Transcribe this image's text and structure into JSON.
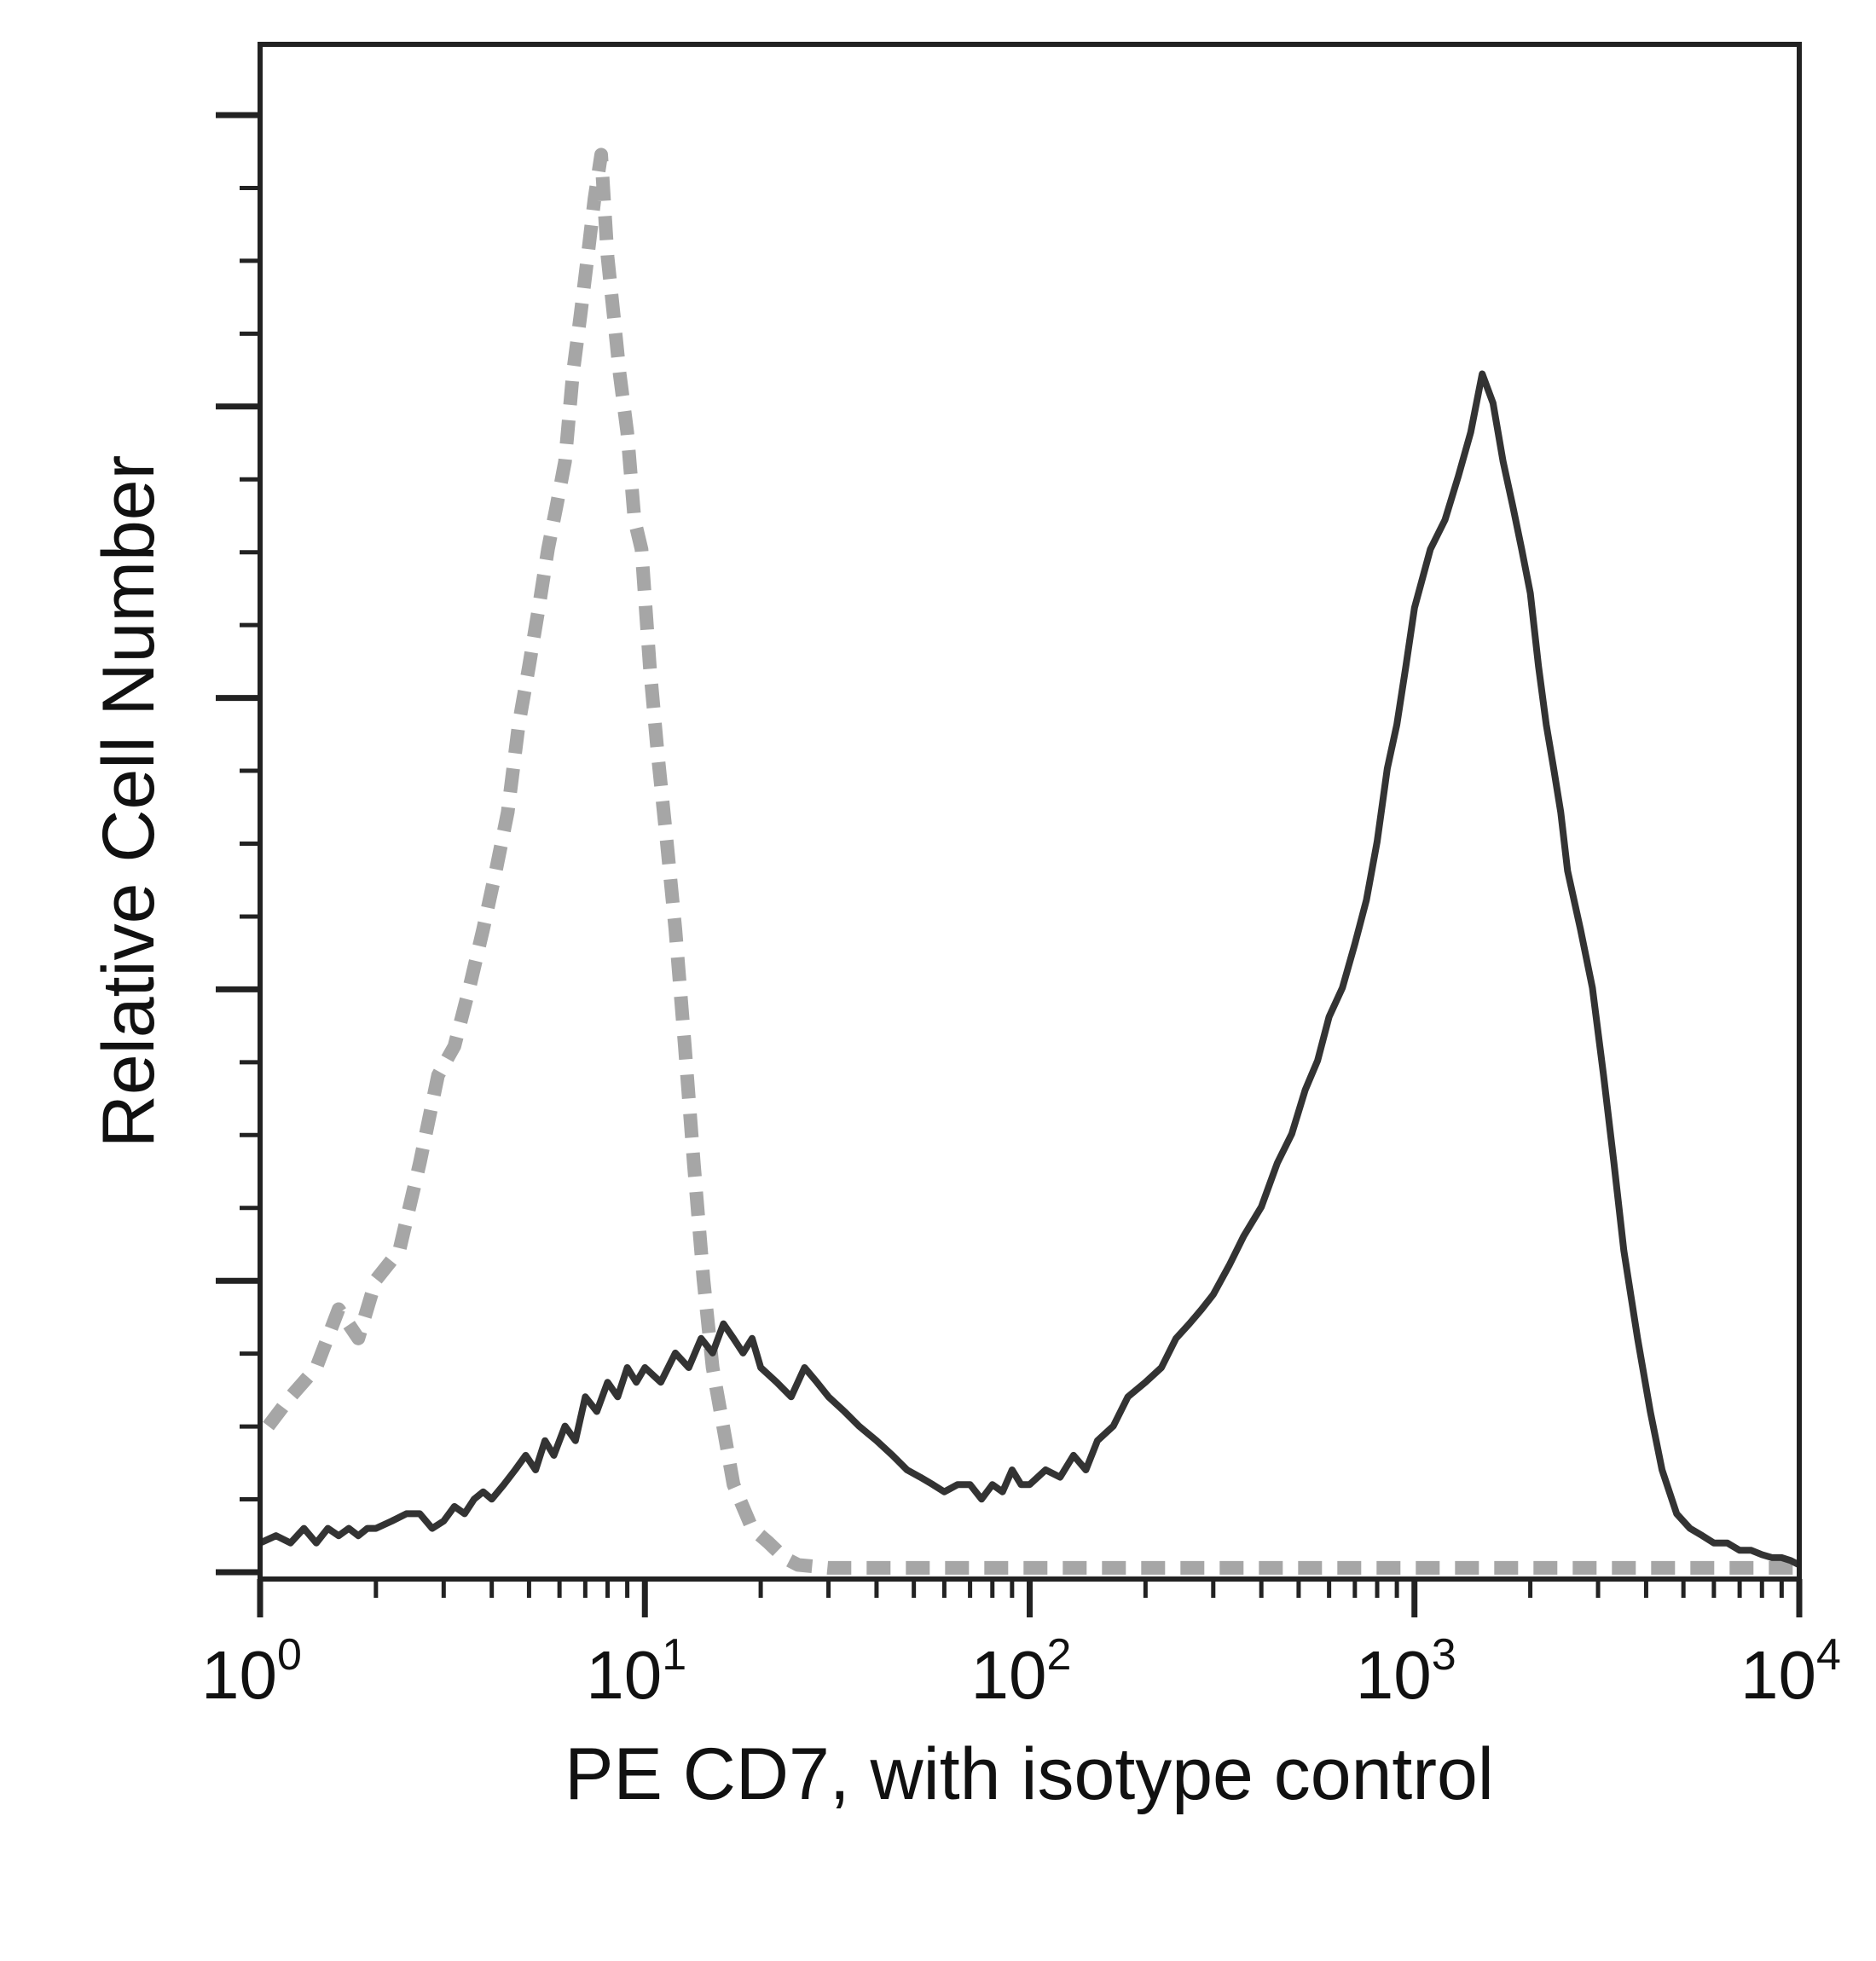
{
  "chart_data": {
    "type": "line",
    "title": "",
    "xlabel": "PE CD7, with isotype control",
    "ylabel": "Relative Cell Number",
    "xscale": "log",
    "xlim": [
      1,
      10000
    ],
    "ylim": [
      0,
      100
    ],
    "grid": false,
    "x_ticks": [
      {
        "base": "10",
        "exp": "0"
      },
      {
        "base": "10",
        "exp": "1"
      },
      {
        "base": "10",
        "exp": "2"
      },
      {
        "base": "10",
        "exp": "3"
      },
      {
        "base": "10",
        "exp": "4"
      }
    ],
    "y_tick_count": 21,
    "colors": {
      "isotype": "#a6a6a6",
      "stained": "#333333",
      "axis": "#222222"
    },
    "series": [
      {
        "style": "dashed",
        "color": "#a6a6a6",
        "x": [
          1.05,
          1.2,
          1.4,
          1.6,
          1.8,
          2.0,
          2.3,
          2.6,
          2.9,
          3.2,
          3.5,
          3.8,
          4.1,
          4.4,
          4.7,
          5.0,
          5.3,
          5.6,
          5.9,
          6.2,
          6.5,
          6.8,
          7.1,
          7.4,
          7.7,
          8.0,
          8.3,
          8.6,
          9.0,
          9.4,
          9.8,
          10.3,
          10.8,
          11.4,
          12.0,
          12.7,
          13.4,
          14.2,
          15.0,
          17,
          19,
          21,
          23,
          25,
          30,
          60,
          100,
          200,
          400,
          1000,
          3000,
          10000
        ],
        "values": [
          10,
          12,
          14,
          18,
          16,
          20,
          22,
          28,
          34,
          36,
          40,
          44,
          48,
          52,
          58,
          62,
          66,
          70,
          73,
          76,
          82,
          86,
          90,
          94,
          97,
          90,
          86,
          82,
          78,
          72,
          70,
          62,
          56,
          50,
          44,
          36,
          28,
          20,
          14,
          6,
          3,
          2,
          1,
          0.5,
          0.3,
          0.3,
          0.3,
          0.3,
          0.3,
          0.3,
          0.3,
          0.3
        ]
      },
      {
        "style": "solid",
        "color": "#333333",
        "x": [
          1.0,
          1.1,
          1.2,
          1.3,
          1.4,
          1.5,
          1.6,
          1.7,
          1.8,
          1.9,
          2.0,
          2.2,
          2.4,
          2.6,
          2.8,
          3.0,
          3.2,
          3.4,
          3.6,
          3.8,
          4.0,
          4.3,
          4.6,
          4.9,
          5.2,
          5.5,
          5.8,
          6.2,
          6.6,
          7.0,
          7.5,
          8.0,
          8.5,
          9.0,
          9.5,
          10,
          11,
          12,
          13,
          14,
          15,
          16,
          17,
          18,
          19,
          20,
          22,
          24,
          26,
          28,
          30,
          33,
          36,
          40,
          44,
          48,
          52,
          56,
          60,
          65,
          70,
          75,
          80,
          85,
          90,
          95,
          100,
          110,
          120,
          130,
          140,
          150,
          165,
          180,
          200,
          220,
          240,
          260,
          280,
          300,
          330,
          360,
          400,
          440,
          480,
          520,
          560,
          600,
          650,
          700,
          750,
          800,
          850,
          900,
          950,
          1000,
          1100,
          1200,
          1300,
          1400,
          1500,
          1600,
          1700,
          1800,
          1900,
          2000,
          2100,
          2200,
          2300,
          2400,
          2500,
          2700,
          2900,
          3100,
          3300,
          3500,
          3800,
          4100,
          4400,
          4800,
          5200,
          5600,
          6000,
          6500,
          7000,
          7500,
          8000,
          8500,
          9000,
          9500,
          10000
        ],
        "values": [
          2,
          2.5,
          2,
          3,
          2,
          3,
          2.5,
          3,
          2.5,
          3,
          3,
          3.5,
          4,
          4,
          3,
          3.5,
          4.5,
          4,
          5,
          5.5,
          5,
          6,
          7,
          8,
          7,
          9,
          8,
          10,
          9,
          12,
          11,
          13,
          12,
          14,
          13,
          14,
          13,
          15,
          14,
          16,
          15,
          17,
          16,
          15,
          16,
          14,
          13,
          12,
          14,
          13,
          12,
          11,
          10,
          9,
          8,
          7,
          6.5,
          6,
          5.5,
          6,
          6,
          5,
          6,
          5.5,
          7,
          6,
          6,
          7,
          6.5,
          8,
          7,
          9,
          10,
          12,
          13,
          14,
          16,
          17,
          18,
          19,
          21,
          23,
          25,
          28,
          30,
          33,
          35,
          38,
          40,
          43,
          46,
          50,
          55,
          58,
          62,
          66,
          70,
          72,
          75,
          78,
          82,
          80,
          76,
          73,
          70,
          67,
          62,
          58,
          55,
          52,
          48,
          44,
          40,
          34,
          28,
          22,
          16,
          11,
          7,
          4,
          3,
          2.5,
          2,
          2,
          1.5,
          1.5,
          1.2,
          1,
          1,
          0.8,
          0.5
        ]
      }
    ]
  }
}
